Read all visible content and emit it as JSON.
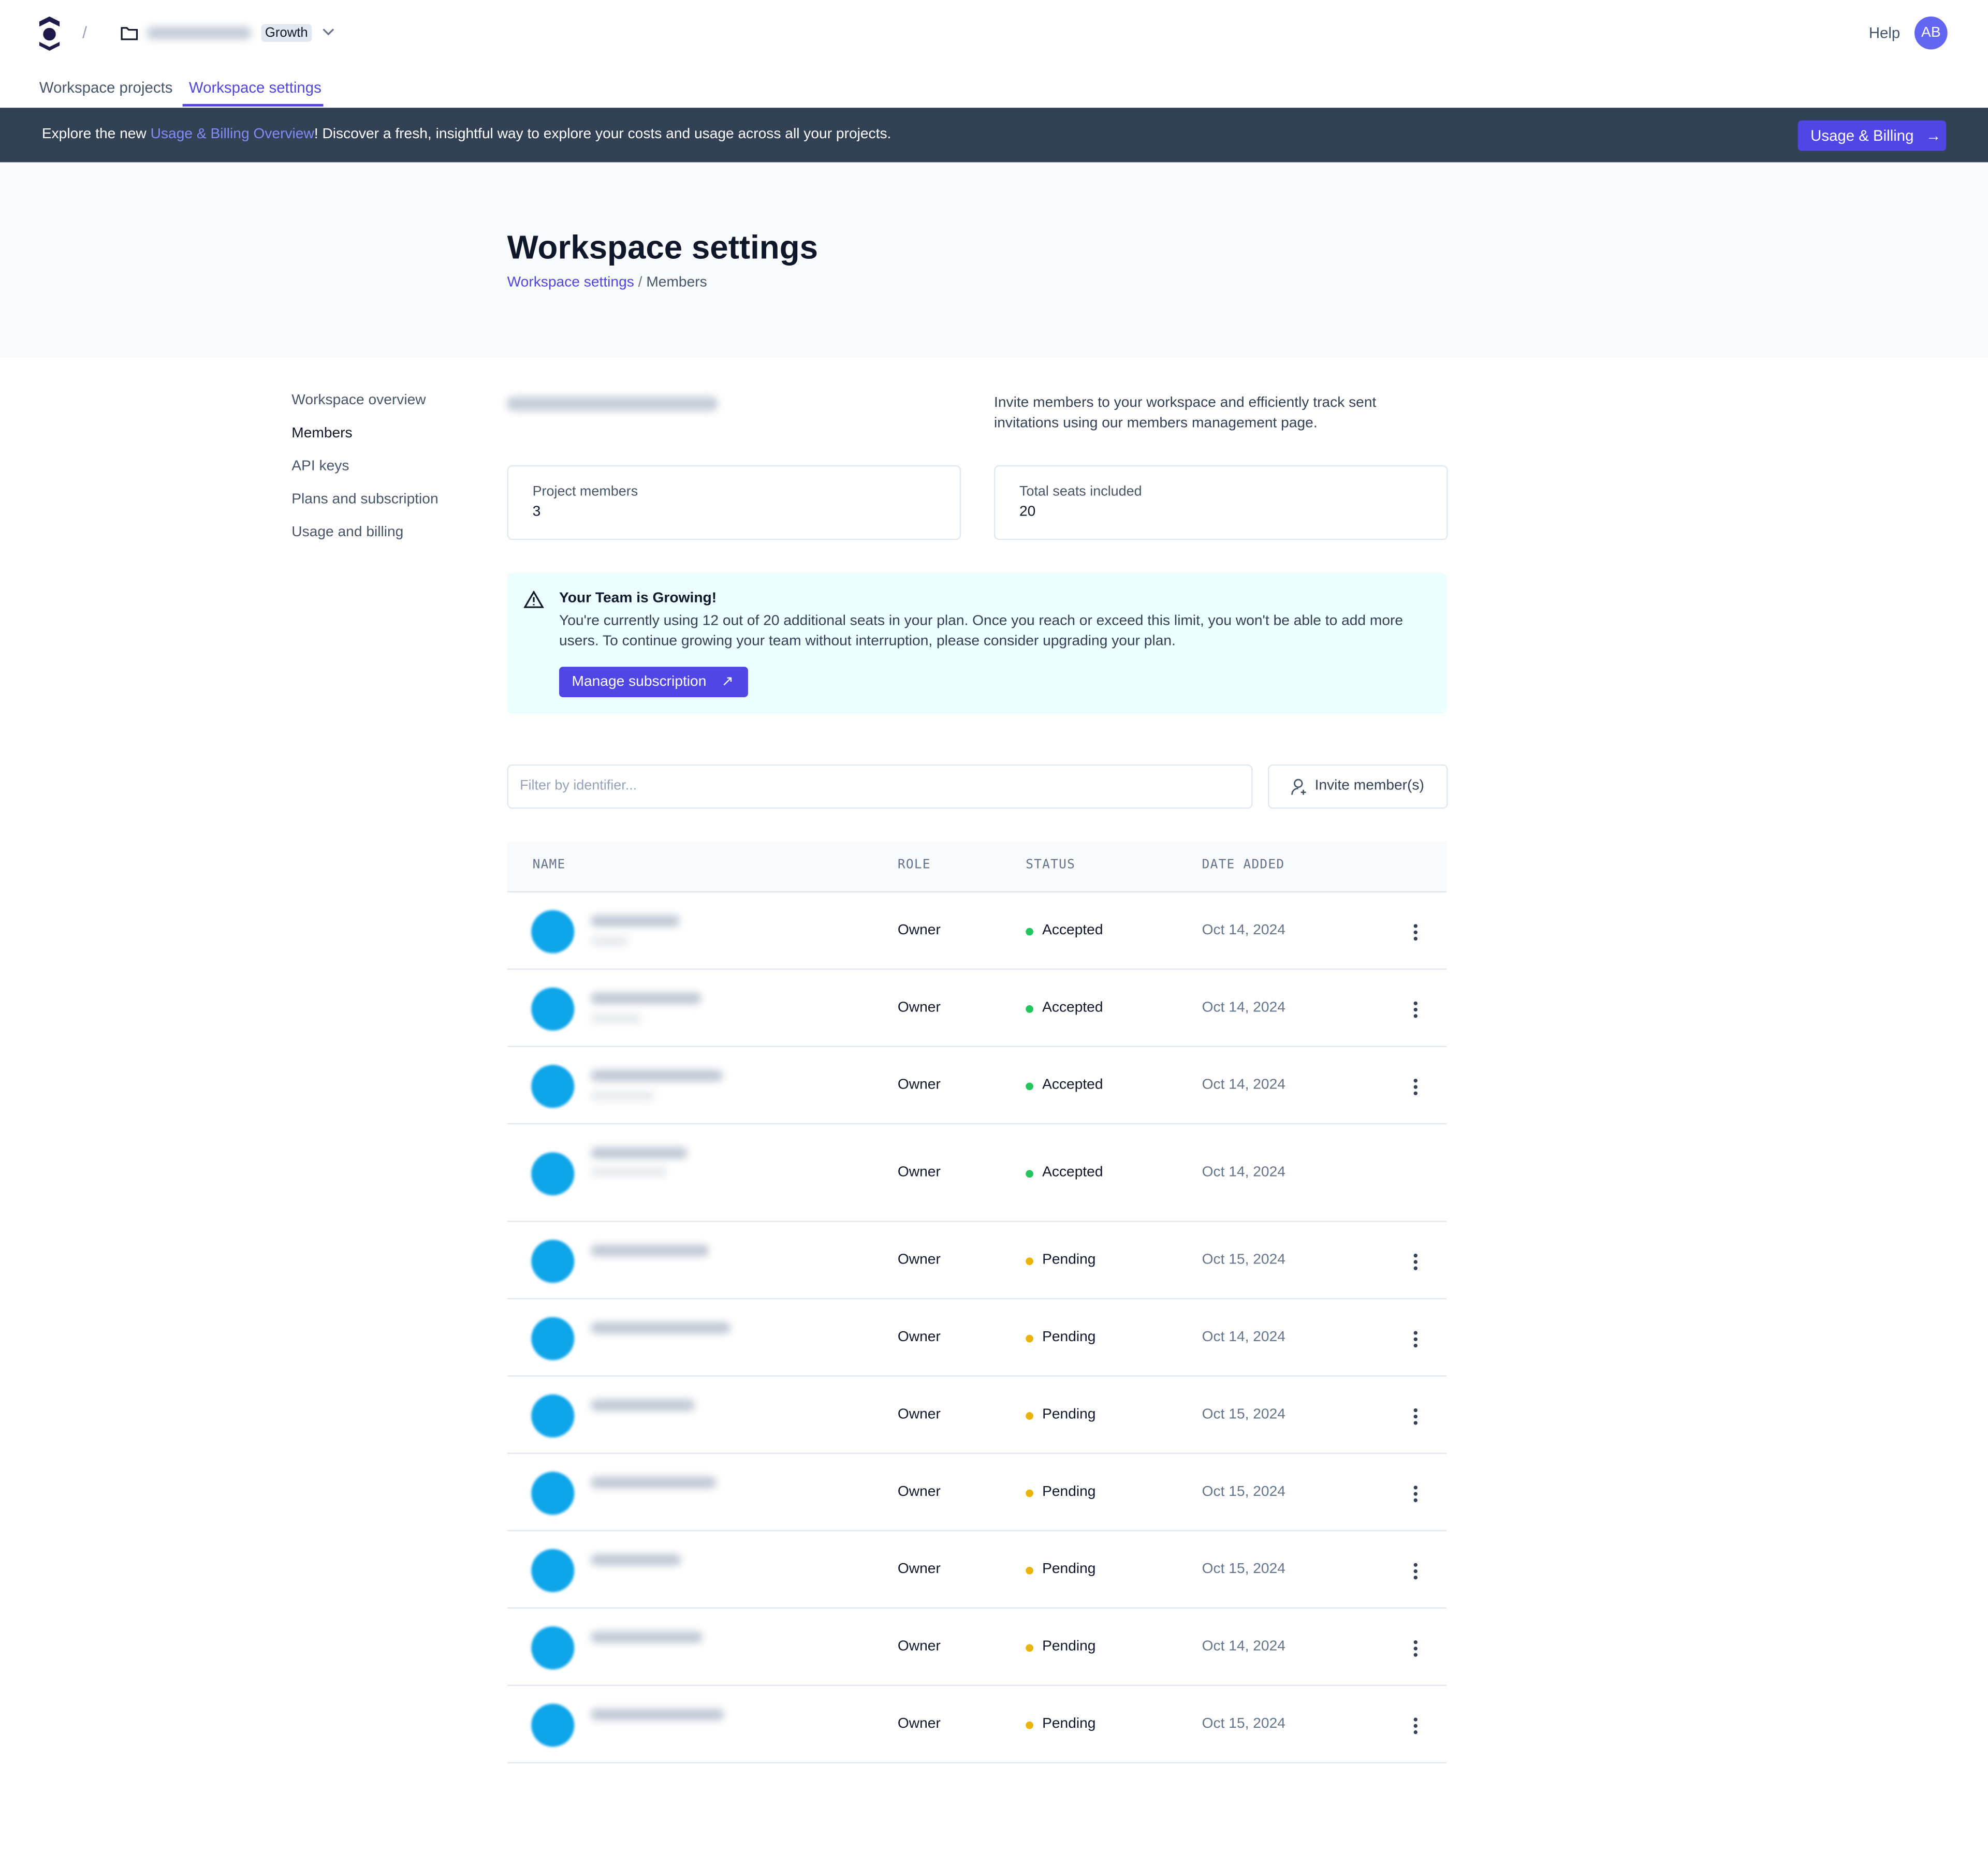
{
  "header": {
    "plan_badge": "Growth",
    "help": "Help",
    "avatar": "AB"
  },
  "tabs": [
    "Workspace projects",
    "Workspace settings"
  ],
  "banner": {
    "text_before": "Explore the new ",
    "link": "Usage & Billing Overview",
    "text_after": "! Discover a fresh, insightful way to explore your costs and usage across all your projects.",
    "button": "Usage & Billing"
  },
  "page": {
    "title": "Workspace settings",
    "breadcrumb": [
      "Workspace settings",
      "Members"
    ]
  },
  "sidebar": [
    "Workspace overview",
    "Members",
    "API keys",
    "Plans and subscription",
    "Usage and billing"
  ],
  "content": {
    "description": "Invite members to your workspace and efficiently track sent invitations using our members management page.",
    "stats": [
      {
        "label": "Project members",
        "value": "3"
      },
      {
        "label": "Total seats included",
        "value": "20"
      }
    ],
    "alert": {
      "title": "Your Team is Growing!",
      "text": "You're currently using 12 out of 20 additional seats in your plan. Once you reach or exceed this limit, you won't be able to add more users. To continue growing your team without interruption, please consider upgrading your plan.",
      "button": "Manage subscription"
    },
    "filter_placeholder": "Filter by identifier...",
    "invite_button": "Invite member(s)"
  },
  "table": {
    "columns": [
      "NAME",
      "ROLE",
      "STATUS",
      "DATE ADDED"
    ],
    "rows": [
      {
        "role": "Owner",
        "status": "Accepted",
        "status_color": "#22c55e",
        "date": "Oct 14, 2024"
      },
      {
        "role": "Owner",
        "status": "Accepted",
        "status_color": "#22c55e",
        "date": "Oct 14, 2024"
      },
      {
        "role": "Owner",
        "status": "Accepted",
        "status_color": "#22c55e",
        "date": "Oct 14, 2024"
      },
      {
        "role": "Owner",
        "status": "Accepted",
        "status_color": "#22c55e",
        "date": "Oct 14, 2024"
      },
      {
        "role": "Owner",
        "status": "Pending",
        "status_color": "#eab308",
        "date": "Oct 15, 2024"
      },
      {
        "role": "Owner",
        "status": "Pending",
        "status_color": "#eab308",
        "date": "Oct 14, 2024"
      },
      {
        "role": "Owner",
        "status": "Pending",
        "status_color": "#eab308",
        "date": "Oct 15, 2024"
      },
      {
        "role": "Owner",
        "status": "Pending",
        "status_color": "#eab308",
        "date": "Oct 15, 2024"
      },
      {
        "role": "Owner",
        "status": "Pending",
        "status_color": "#eab308",
        "date": "Oct 15, 2024"
      },
      {
        "role": "Owner",
        "status": "Pending",
        "status_color": "#eab308",
        "date": "Oct 14, 2024"
      },
      {
        "role": "Owner",
        "status": "Pending",
        "status_color": "#eab308",
        "date": "Oct 15, 2024"
      }
    ]
  }
}
